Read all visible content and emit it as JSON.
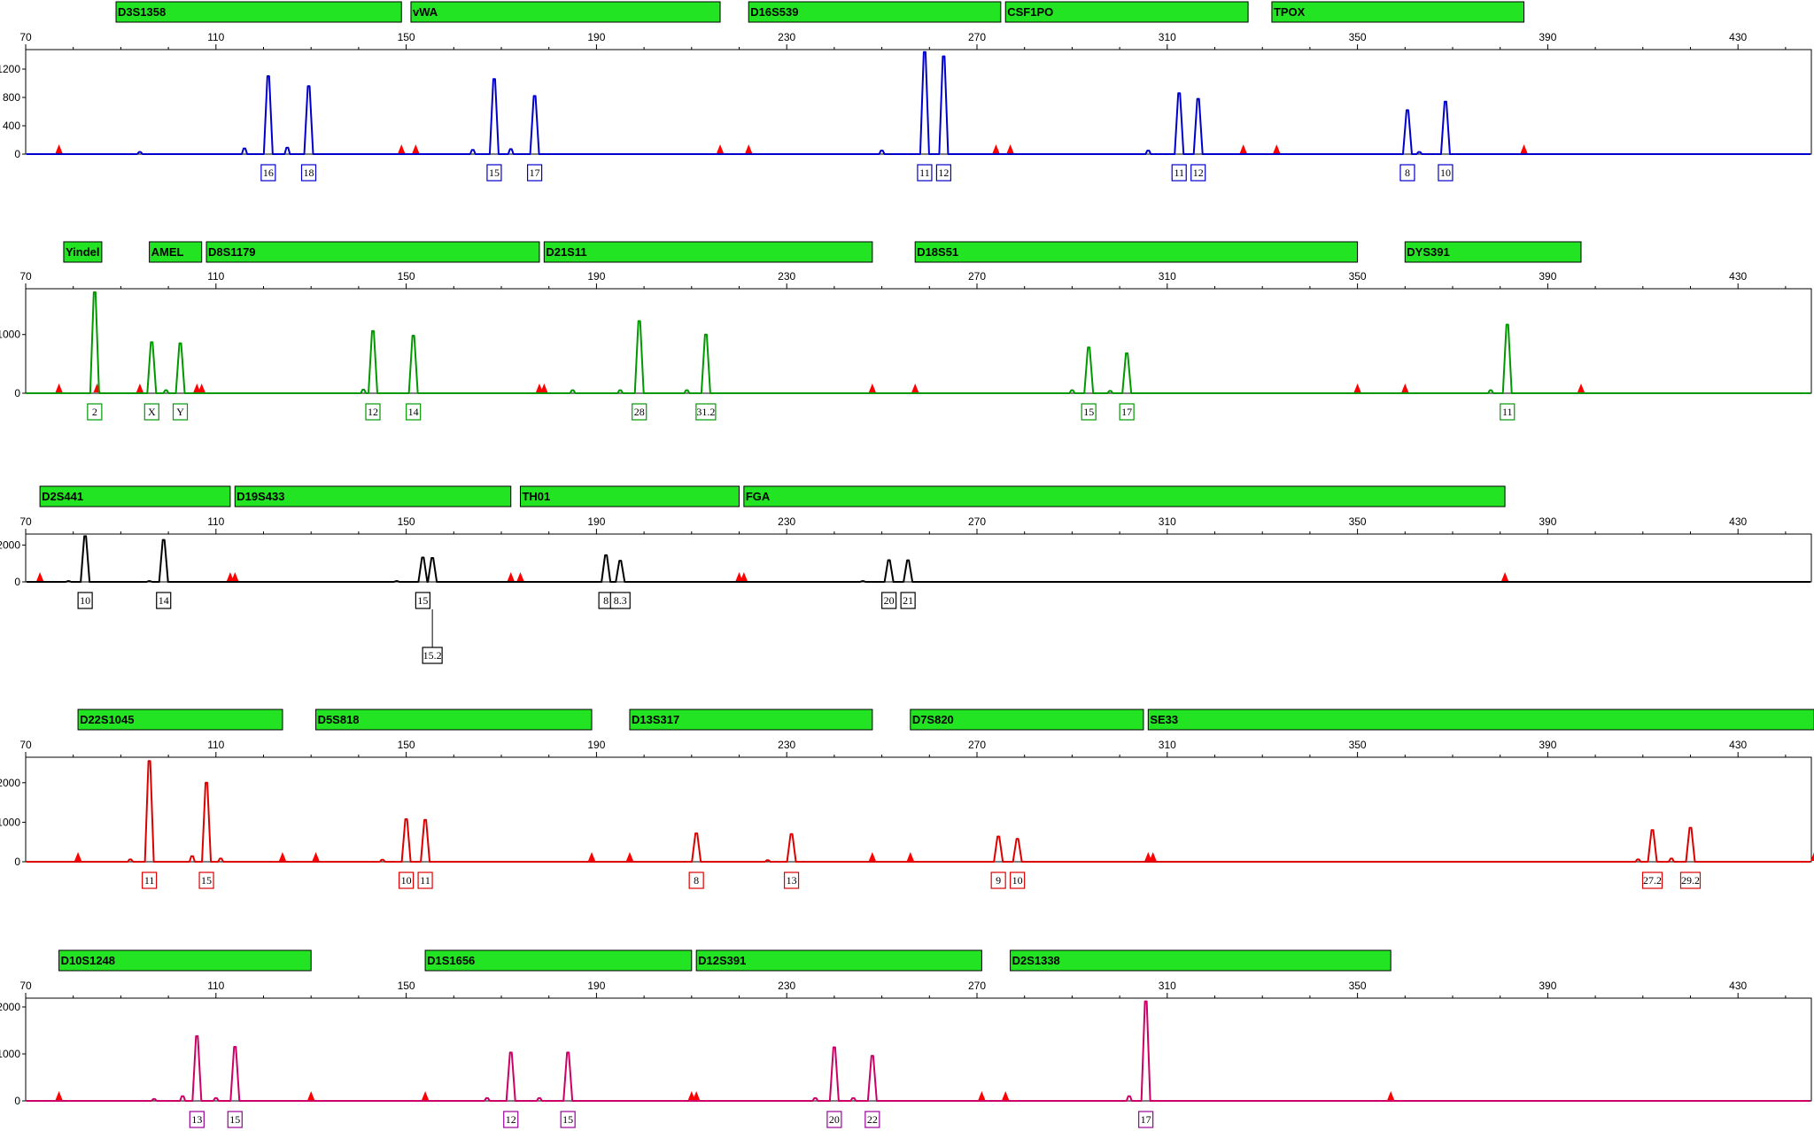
{
  "chart_data": [
    {
      "type": "line",
      "dye": "blue",
      "color": "#0000cc",
      "x_axis_ticks": [
        70,
        110,
        150,
        190,
        230,
        270,
        310,
        350,
        390,
        430
      ],
      "xlim": [
        70,
        450
      ],
      "y_ticks": [
        0,
        400,
        800,
        1200
      ],
      "ylim": [
        0,
        1450
      ],
      "loci": [
        {
          "name": "D3S1358",
          "range": [
            89,
            149
          ]
        },
        {
          "name": "vWA",
          "range": [
            151,
            216
          ]
        },
        {
          "name": "D16S539",
          "range": [
            222,
            275
          ]
        },
        {
          "name": "CSF1PO",
          "range": [
            276,
            327
          ]
        },
        {
          "name": "TPOX",
          "range": [
            332,
            385
          ]
        }
      ],
      "peaks": [
        {
          "allele": "16",
          "size": 121,
          "height": 1100
        },
        {
          "allele": "18",
          "size": 129.5,
          "height": 960
        },
        {
          "allele": "15",
          "size": 168.5,
          "height": 1060
        },
        {
          "allele": "17",
          "size": 177,
          "height": 820
        },
        {
          "allele": "11",
          "size": 259,
          "height": 1440
        },
        {
          "allele": "12",
          "size": 263,
          "height": 1380
        },
        {
          "allele": "11",
          "size": 312.5,
          "height": 860
        },
        {
          "allele": "12",
          "size": 316.5,
          "height": 780
        },
        {
          "allele": "8",
          "size": 360.5,
          "height": 620
        },
        {
          "allele": "10",
          "size": 368.5,
          "height": 740
        }
      ],
      "minor_peaks": [
        [
          94,
          30
        ],
        [
          116,
          80
        ],
        [
          125,
          90
        ],
        [
          164,
          60
        ],
        [
          172,
          70
        ],
        [
          250,
          50
        ],
        [
          306,
          50
        ],
        [
          363,
          30
        ]
      ],
      "size_markers": [
        77,
        149,
        152,
        216,
        222,
        274,
        277,
        326,
        333,
        385
      ]
    },
    {
      "type": "line",
      "dye": "green",
      "color": "#009900",
      "x_axis_ticks": [
        70,
        110,
        150,
        190,
        230,
        270,
        310,
        350,
        390,
        430
      ],
      "xlim": [
        70,
        450
      ],
      "y_ticks": [
        0,
        1000
      ],
      "ylim": [
        0,
        1750
      ],
      "loci": [
        {
          "name": "Yindel",
          "range": [
            78,
            86
          ]
        },
        {
          "name": "AMEL",
          "range": [
            96,
            107
          ]
        },
        {
          "name": "D8S1179",
          "range": [
            108,
            178
          ]
        },
        {
          "name": "D21S11",
          "range": [
            179,
            248
          ]
        },
        {
          "name": "D18S51",
          "range": [
            257,
            350
          ]
        },
        {
          "name": "DYS391",
          "range": [
            360,
            397
          ]
        }
      ],
      "peaks": [
        {
          "allele": "2",
          "size": 84.5,
          "height": 1720
        },
        {
          "allele": "X",
          "size": 96.5,
          "height": 870
        },
        {
          "allele": "Y",
          "size": 102.5,
          "height": 850
        },
        {
          "allele": "12",
          "size": 143,
          "height": 1060
        },
        {
          "allele": "14",
          "size": 151.5,
          "height": 980
        },
        {
          "allele": "28",
          "size": 199,
          "height": 1230
        },
        {
          "allele": "31.2",
          "size": 213,
          "height": 1000
        },
        {
          "allele": "15",
          "size": 293.5,
          "height": 780
        },
        {
          "allele": "17",
          "size": 301.5,
          "height": 680
        },
        {
          "allele": "11",
          "size": 381.5,
          "height": 1170
        }
      ],
      "minor_peaks": [
        [
          99.5,
          50
        ],
        [
          141,
          60
        ],
        [
          185,
          50
        ],
        [
          195,
          50
        ],
        [
          209,
          50
        ],
        [
          290,
          50
        ],
        [
          298,
          40
        ],
        [
          378,
          50
        ]
      ],
      "size_markers": [
        77,
        85,
        94,
        106,
        107,
        178,
        179,
        248,
        257,
        350,
        360,
        397
      ]
    },
    {
      "type": "line",
      "dye": "black",
      "color": "#000000",
      "x_axis_ticks": [
        70,
        110,
        150,
        190,
        230,
        270,
        310,
        350,
        390,
        430
      ],
      "xlim": [
        70,
        450
      ],
      "y_ticks": [
        0,
        2000
      ],
      "ylim": [
        0,
        2500
      ],
      "loci": [
        {
          "name": "D2S441",
          "range": [
            73,
            113
          ]
        },
        {
          "name": "D19S433",
          "range": [
            114,
            172
          ]
        },
        {
          "name": "TH01",
          "range": [
            174,
            220
          ]
        },
        {
          "name": "FGA",
          "range": [
            221,
            381
          ]
        }
      ],
      "peaks": [
        {
          "allele": "10",
          "size": 82.5,
          "height": 2480
        },
        {
          "allele": "14",
          "size": 99,
          "height": 2280
        },
        {
          "allele": "15",
          "size": 153.5,
          "height": 1320
        },
        {
          "allele": "15.2",
          "size": 155.5,
          "height": 1300
        },
        {
          "allele": "8",
          "size": 192,
          "height": 1450
        },
        {
          "allele": "8.3",
          "size": 195,
          "height": 1150
        },
        {
          "allele": "20",
          "size": 251.5,
          "height": 1180
        },
        {
          "allele": "21",
          "size": 255.5,
          "height": 1170
        }
      ],
      "minor_peaks": [
        [
          79,
          40
        ],
        [
          96,
          40
        ],
        [
          148,
          40
        ],
        [
          246,
          40
        ]
      ],
      "size_markers": [
        73,
        113,
        114,
        172,
        174,
        220,
        221,
        381
      ]
    },
    {
      "type": "line",
      "dye": "red",
      "color": "#dd0000",
      "x_axis_ticks": [
        70,
        110,
        150,
        190,
        230,
        270,
        310,
        350,
        390,
        430
      ],
      "xlim": [
        70,
        450
      ],
      "y_ticks": [
        0,
        1000,
        2000
      ],
      "ylim": [
        0,
        2600
      ],
      "loci": [
        {
          "name": "D22S1045",
          "range": [
            81,
            124
          ]
        },
        {
          "name": "D5S818",
          "range": [
            131,
            189
          ]
        },
        {
          "name": "D13S317",
          "range": [
            197,
            248
          ]
        },
        {
          "name": "D7S820",
          "range": [
            256,
            305
          ]
        },
        {
          "name": "SE33",
          "range": [
            306,
            446
          ]
        }
      ],
      "peaks": [
        {
          "allele": "11",
          "size": 96,
          "height": 2550
        },
        {
          "allele": "15",
          "size": 108,
          "height": 2000
        },
        {
          "allele": "10",
          "size": 150,
          "height": 1080
        },
        {
          "allele": "11",
          "size": 154,
          "height": 1060
        },
        {
          "allele": "8",
          "size": 211,
          "height": 720
        },
        {
          "allele": "13",
          "size": 231,
          "height": 700
        },
        {
          "allele": "9",
          "size": 274.5,
          "height": 640
        },
        {
          "allele": "10",
          "size": 278.5,
          "height": 580
        },
        {
          "allele": "27.2",
          "size": 412,
          "height": 800
        },
        {
          "allele": "29.2",
          "size": 420,
          "height": 860
        }
      ],
      "minor_peaks": [
        [
          92,
          60
        ],
        [
          105,
          140
        ],
        [
          111,
          80
        ],
        [
          145,
          50
        ],
        [
          226,
          40
        ],
        [
          409,
          60
        ],
        [
          416,
          80
        ]
      ],
      "size_markers": [
        81,
        124,
        131,
        189,
        197,
        248,
        256,
        306,
        307,
        446
      ]
    },
    {
      "type": "line",
      "dye": "purple",
      "color": "#990099",
      "trace_color": "#cc0066",
      "x_axis_ticks": [
        70,
        110,
        150,
        190,
        230,
        270,
        310,
        350,
        390,
        430
      ],
      "xlim": [
        70,
        450
      ],
      "y_ticks": [
        0,
        1000,
        2000
      ],
      "ylim": [
        0,
        2150
      ],
      "loci": [
        {
          "name": "D10S1248",
          "range": [
            77,
            130
          ]
        },
        {
          "name": "D1S1656",
          "range": [
            154,
            210
          ]
        },
        {
          "name": "D12S391",
          "range": [
            211,
            271
          ]
        },
        {
          "name": "D2S1338",
          "range": [
            277,
            357
          ]
        }
      ],
      "peaks": [
        {
          "allele": "13",
          "size": 106,
          "height": 1380
        },
        {
          "allele": "15",
          "size": 114,
          "height": 1150
        },
        {
          "allele": "12",
          "size": 172,
          "height": 1030
        },
        {
          "allele": "15",
          "size": 184,
          "height": 1030
        },
        {
          "allele": "20",
          "size": 240,
          "height": 1140
        },
        {
          "allele": "22",
          "size": 248,
          "height": 960
        },
        {
          "allele": "17",
          "size": 305.5,
          "height": 2120
        }
      ],
      "minor_peaks": [
        [
          97,
          40
        ],
        [
          103,
          100
        ],
        [
          110,
          60
        ],
        [
          167,
          60
        ],
        [
          178,
          60
        ],
        [
          236,
          60
        ],
        [
          244,
          60
        ],
        [
          302,
          100
        ]
      ],
      "size_markers": [
        77,
        130,
        154,
        210,
        211,
        271,
        276,
        357
      ]
    }
  ]
}
